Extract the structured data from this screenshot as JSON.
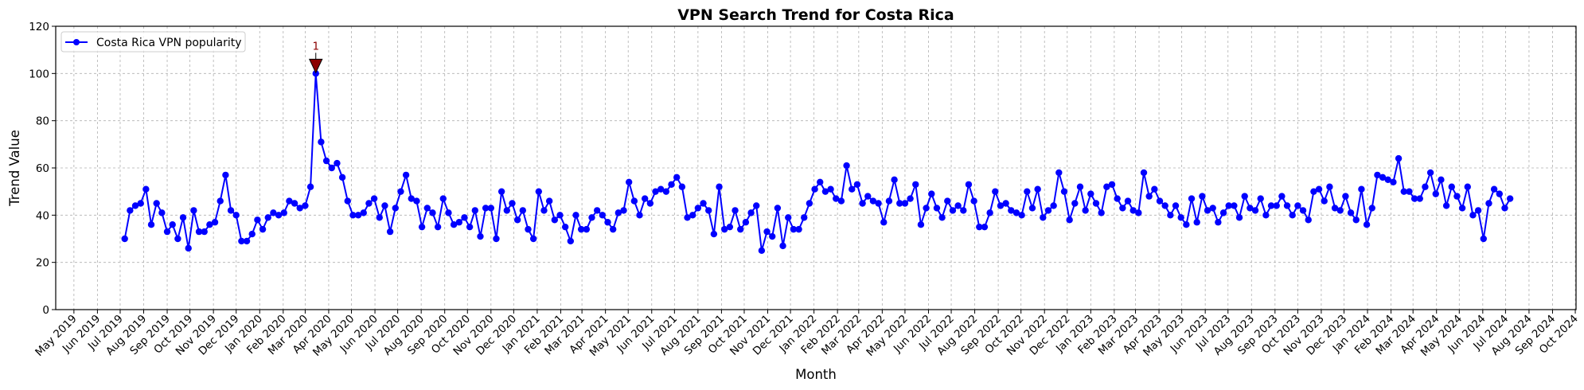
{
  "chart_data": {
    "type": "line",
    "title": "VPN Search Trend for Costa Rica",
    "xlabel": "Month",
    "ylabel": "Trend Value",
    "ylim": [
      0,
      120
    ],
    "xlim": [
      "2019-04-07",
      "2024-10-02"
    ],
    "y_ticks": [
      "0",
      "20",
      "40",
      "60",
      "80",
      "100",
      "120"
    ],
    "x_ticks": [
      "May 2019",
      "Jun 2019",
      "Jul 2019",
      "Aug 2019",
      "Sep 2019",
      "Oct 2019",
      "Nov 2019",
      "Dec 2019",
      "Jan 2020",
      "Feb 2020",
      "Mar 2020",
      "Apr 2020",
      "May 2020",
      "Jun 2020",
      "Jul 2020",
      "Aug 2020",
      "Sep 2020",
      "Oct 2020",
      "Nov 2020",
      "Dec 2020",
      "Jan 2021",
      "Feb 2021",
      "Mar 2021",
      "Apr 2021",
      "May 2021",
      "Jun 2021",
      "Jul 2021",
      "Aug 2021",
      "Sep 2021",
      "Oct 2021",
      "Nov 2021",
      "Dec 2021",
      "Jan 2022",
      "Feb 2022",
      "Mar 2022",
      "Apr 2022",
      "May 2022",
      "Jun 2022",
      "Jul 2022",
      "Aug 2022",
      "Sep 2022",
      "Oct 2022",
      "Nov 2022",
      "Dec 2022",
      "Jan 2023",
      "Feb 2023",
      "Mar 2023",
      "Apr 2023",
      "May 2023",
      "Jun 2023",
      "Jul 2023",
      "Aug 2023",
      "Sep 2023",
      "Oct 2023",
      "Nov 2023",
      "Dec 2023",
      "Jan 2024",
      "Feb 2024",
      "Mar 2024",
      "Apr 2024",
      "May 2024",
      "Jun 2024",
      "Jul 2024",
      "Aug 2024",
      "Sep 2024",
      "Oct 2024"
    ],
    "grid": true,
    "legend_position": "top-left",
    "series": [
      {
        "name": "Costa Rica VPN popularity",
        "color": "#0000ff",
        "marker": "circle",
        "x": [
          "2019-07-07",
          "2019-07-14",
          "2019-07-21",
          "2019-07-28",
          "2019-08-04",
          "2019-08-11",
          "2019-08-18",
          "2019-08-25",
          "2019-09-01",
          "2019-09-08",
          "2019-09-15",
          "2019-09-22",
          "2019-09-29",
          "2019-10-06",
          "2019-10-13",
          "2019-10-20",
          "2019-10-27",
          "2019-11-03",
          "2019-11-10",
          "2019-11-17",
          "2019-11-24",
          "2019-12-01",
          "2019-12-08",
          "2019-12-15",
          "2019-12-22",
          "2019-12-29",
          "2020-01-05",
          "2020-01-12",
          "2020-01-19",
          "2020-01-26",
          "2020-02-02",
          "2020-02-09",
          "2020-02-16",
          "2020-02-23",
          "2020-03-01",
          "2020-03-08",
          "2020-03-15",
          "2020-03-22",
          "2020-03-29",
          "2020-04-05",
          "2020-04-12",
          "2020-04-19",
          "2020-04-26",
          "2020-05-03",
          "2020-05-10",
          "2020-05-17",
          "2020-05-24",
          "2020-05-31",
          "2020-06-07",
          "2020-06-14",
          "2020-06-21",
          "2020-06-28",
          "2020-07-05",
          "2020-07-12",
          "2020-07-19",
          "2020-07-26",
          "2020-08-02",
          "2020-08-09",
          "2020-08-16",
          "2020-08-23",
          "2020-08-30",
          "2020-09-06",
          "2020-09-13",
          "2020-09-20",
          "2020-09-27",
          "2020-10-04",
          "2020-10-11",
          "2020-10-18",
          "2020-10-25",
          "2020-11-01",
          "2020-11-08",
          "2020-11-15",
          "2020-11-22",
          "2020-11-29",
          "2020-12-06",
          "2020-12-13",
          "2020-12-20",
          "2020-12-27",
          "2021-01-03",
          "2021-01-10",
          "2021-01-17",
          "2021-01-24",
          "2021-01-31",
          "2021-02-07",
          "2021-02-14",
          "2021-02-21",
          "2021-02-28",
          "2021-03-07",
          "2021-03-14",
          "2021-03-21",
          "2021-03-28",
          "2021-04-04",
          "2021-04-11",
          "2021-04-18",
          "2021-04-25",
          "2021-05-02",
          "2021-05-09",
          "2021-05-16",
          "2021-05-23",
          "2021-05-30",
          "2021-06-06",
          "2021-06-13",
          "2021-06-20",
          "2021-06-27",
          "2021-07-04",
          "2021-07-11",
          "2021-07-18",
          "2021-07-25",
          "2021-08-01",
          "2021-08-08",
          "2021-08-15",
          "2021-08-22",
          "2021-08-29",
          "2021-09-05",
          "2021-09-12",
          "2021-09-19",
          "2021-09-26",
          "2021-10-03",
          "2021-10-10",
          "2021-10-17",
          "2021-10-24",
          "2021-10-31",
          "2021-11-07",
          "2021-11-14",
          "2021-11-21",
          "2021-11-28",
          "2021-12-05",
          "2021-12-12",
          "2021-12-19",
          "2021-12-26",
          "2022-01-02",
          "2022-01-09",
          "2022-01-16",
          "2022-01-23",
          "2022-01-30",
          "2022-02-06",
          "2022-02-13",
          "2022-02-20",
          "2022-02-27",
          "2022-03-06",
          "2022-03-13",
          "2022-03-20",
          "2022-03-27",
          "2022-04-03",
          "2022-04-10",
          "2022-04-17",
          "2022-04-24",
          "2022-05-01",
          "2022-05-08",
          "2022-05-15",
          "2022-05-22",
          "2022-05-29",
          "2022-06-05",
          "2022-06-12",
          "2022-06-19",
          "2022-06-26",
          "2022-07-03",
          "2022-07-10",
          "2022-07-17",
          "2022-07-24",
          "2022-07-31",
          "2022-08-07",
          "2022-08-14",
          "2022-08-21",
          "2022-08-28",
          "2022-09-04",
          "2022-09-11",
          "2022-09-18",
          "2022-09-25",
          "2022-10-02",
          "2022-10-09",
          "2022-10-16",
          "2022-10-23",
          "2022-10-30",
          "2022-11-06",
          "2022-11-13",
          "2022-11-20",
          "2022-11-27",
          "2022-12-04",
          "2022-12-11",
          "2022-12-18",
          "2022-12-25",
          "2023-01-01",
          "2023-01-08",
          "2023-01-15",
          "2023-01-22",
          "2023-01-29",
          "2023-02-05",
          "2023-02-12",
          "2023-02-19",
          "2023-02-26",
          "2023-03-05",
          "2023-03-12",
          "2023-03-19",
          "2023-03-26",
          "2023-04-02",
          "2023-04-09",
          "2023-04-16",
          "2023-04-23",
          "2023-04-30",
          "2023-05-07",
          "2023-05-14",
          "2023-05-21",
          "2023-05-28",
          "2023-06-04",
          "2023-06-11",
          "2023-06-18",
          "2023-06-25",
          "2023-07-02",
          "2023-07-09",
          "2023-07-16",
          "2023-07-23",
          "2023-07-30",
          "2023-08-06",
          "2023-08-13",
          "2023-08-20",
          "2023-08-27",
          "2023-09-03",
          "2023-09-10",
          "2023-09-17",
          "2023-09-24",
          "2023-10-01",
          "2023-10-08",
          "2023-10-15",
          "2023-10-22",
          "2023-10-29",
          "2023-11-05",
          "2023-11-12",
          "2023-11-19",
          "2023-11-26",
          "2023-12-03",
          "2023-12-10",
          "2023-12-17",
          "2023-12-24",
          "2023-12-31",
          "2024-01-07",
          "2024-01-14",
          "2024-01-21",
          "2024-01-28",
          "2024-02-04",
          "2024-02-11",
          "2024-02-18",
          "2024-02-25",
          "2024-03-03",
          "2024-03-10",
          "2024-03-17",
          "2024-03-24",
          "2024-03-31",
          "2024-04-07",
          "2024-04-14",
          "2024-04-21",
          "2024-04-28",
          "2024-05-05",
          "2024-05-12",
          "2024-05-19",
          "2024-05-26",
          "2024-06-02",
          "2024-06-09",
          "2024-06-16",
          "2024-06-23",
          "2024-06-30",
          "2024-07-07"
        ],
        "values": [
          30,
          42,
          44,
          45,
          51,
          36,
          45,
          41,
          33,
          36,
          30,
          39,
          26,
          42,
          33,
          33,
          36,
          37,
          46,
          57,
          42,
          40,
          29,
          29,
          32,
          38,
          34,
          39,
          41,
          40,
          41,
          46,
          45,
          43,
          44,
          52,
          100,
          71,
          63,
          60,
          62,
          56,
          46,
          40,
          40,
          41,
          45,
          47,
          39,
          44,
          33,
          43,
          50,
          57,
          47,
          46,
          35,
          43,
          41,
          35,
          47,
          41,
          36,
          37,
          39,
          35,
          42,
          31,
          43,
          43,
          30,
          50,
          42,
          45,
          38,
          42,
          34,
          30,
          50,
          42,
          46,
          38,
          40,
          35,
          29,
          40,
          34,
          34,
          39,
          42,
          40,
          37,
          34,
          41,
          42,
          54,
          46,
          40,
          47,
          45,
          50,
          51,
          50,
          53,
          56,
          52,
          39,
          40,
          43,
          45,
          42,
          32,
          52,
          34,
          35,
          42,
          34,
          37,
          41,
          44,
          25,
          33,
          31,
          43,
          27,
          39,
          34,
          34,
          39,
          45,
          51,
          54,
          50,
          51,
          47,
          46,
          61,
          51,
          53,
          45,
          48,
          46,
          45,
          37,
          46,
          55,
          45,
          45,
          47,
          53,
          36,
          43,
          49,
          43,
          39,
          46,
          42,
          44,
          42,
          53,
          46,
          35,
          35,
          41,
          50,
          44,
          45,
          42,
          41,
          40,
          50,
          43,
          51,
          39,
          42,
          44,
          58,
          50,
          38,
          45,
          52,
          42,
          49,
          45,
          41,
          52,
          53,
          47,
          43,
          46,
          42,
          41,
          58,
          48,
          51,
          46,
          44,
          40,
          44,
          39,
          36,
          47,
          37,
          48,
          42,
          43,
          37,
          41,
          44,
          44,
          39,
          48,
          43,
          42,
          47,
          40,
          44,
          44,
          48,
          44,
          40,
          44,
          42,
          38,
          50,
          51,
          46,
          52,
          43,
          42,
          48,
          41,
          38,
          51,
          36,
          43,
          57,
          56,
          55,
          54,
          64,
          50,
          50,
          47,
          47,
          52,
          58,
          49,
          55,
          44,
          52,
          48,
          43,
          52,
          40,
          42,
          30,
          45,
          51,
          49,
          43,
          47
        ]
      }
    ],
    "annotations": [
      {
        "text": "1",
        "x": "2020-03-15",
        "y": 100,
        "marker": "triangle-down",
        "color": "#8b0000"
      }
    ]
  }
}
